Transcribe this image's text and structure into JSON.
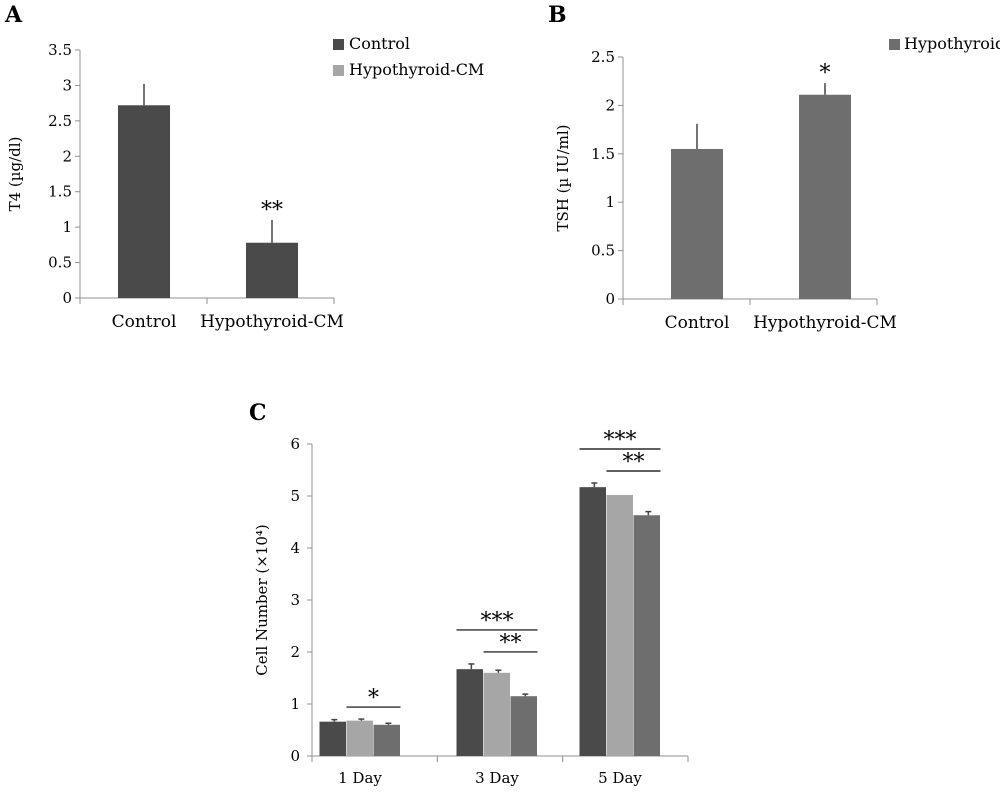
{
  "colors": {
    "control": "#4a4a4a",
    "hypothyroid_cm": "#a6a6a6",
    "hypothyroid": "#6e6e6e",
    "axis": "#909090"
  },
  "chart_data": [
    {
      "panel": "A",
      "type": "bar",
      "ylabel": "T4 (µg/dl)",
      "ylim": [
        0,
        3.5
      ],
      "yticks": [
        "0",
        "0.5",
        "1",
        "1.5",
        "2",
        "2.5",
        "3",
        "3.5"
      ],
      "categories": [
        "Control",
        "Hypothyroid-CM"
      ],
      "values": [
        2.72,
        0.78
      ],
      "errors": [
        0.3,
        0.32
      ],
      "significance": [
        "",
        "**"
      ],
      "legend": [
        {
          "name": "Control",
          "color": "#4a4a4a"
        },
        {
          "name": "Hypothyroid-CM",
          "color": "#a6a6a6"
        }
      ],
      "legend_position": "top-right"
    },
    {
      "panel": "B",
      "type": "bar",
      "ylabel": "TSH (µ IU/ml)",
      "ylim": [
        0,
        2.5
      ],
      "yticks": [
        "0",
        "0.5",
        "1",
        "1.5",
        "2",
        "2.5"
      ],
      "categories": [
        "Control",
        "Hypothyroid-CM"
      ],
      "values": [
        1.55,
        2.11
      ],
      "errors": [
        0.26,
        0.12
      ],
      "significance": [
        "",
        "*"
      ],
      "legend": [
        {
          "name": "Hypothyroid",
          "color": "#6e6e6e"
        }
      ],
      "legend_position": "top-right"
    },
    {
      "panel": "C",
      "type": "bar",
      "ylabel": "Cell Number (×10⁴)",
      "ylim": [
        0,
        6
      ],
      "yticks": [
        "0",
        "1",
        "2",
        "3",
        "4",
        "5",
        "6"
      ],
      "categories": [
        "1 Day",
        "3 Day",
        "5 Day"
      ],
      "series": [
        {
          "color": "#4a4a4a",
          "values": [
            0.66,
            1.67,
            5.17
          ],
          "errors": [
            0.04,
            0.1,
            0.08
          ]
        },
        {
          "color": "#a6a6a6",
          "values": [
            0.68,
            1.6,
            5.02
          ],
          "errors": [
            0.03,
            0.05,
            0.0
          ]
        },
        {
          "color": "#6e6e6e",
          "values": [
            0.6,
            1.15,
            4.63
          ],
          "errors": [
            0.03,
            0.04,
            0.07
          ]
        }
      ],
      "significance": [
        {
          "category": "1 Day",
          "from_series": 1,
          "to_series": 2,
          "label": "*"
        },
        {
          "category": "3 Day",
          "from_series": 0,
          "to_series": 2,
          "label": "***"
        },
        {
          "category": "3 Day",
          "from_series": 1,
          "to_series": 2,
          "label": "**"
        },
        {
          "category": "5 Day",
          "from_series": 0,
          "to_series": 2,
          "label": "***"
        },
        {
          "category": "5 Day",
          "from_series": 1,
          "to_series": 2,
          "label": "**"
        }
      ]
    }
  ]
}
